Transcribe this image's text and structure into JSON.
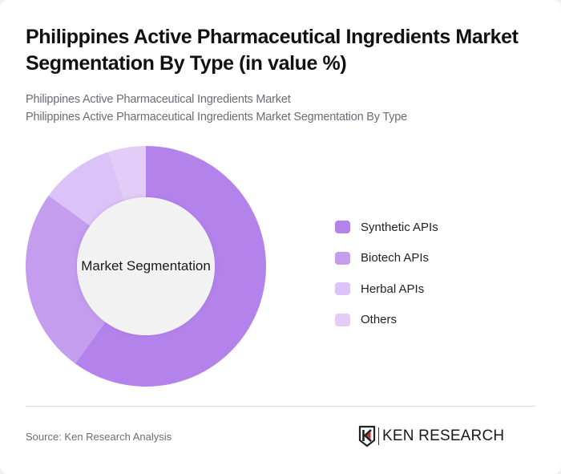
{
  "title": "Philippines Active Pharmaceutical Ingredients Market Segmentation By Type (in value %)",
  "subtitle": {
    "line1": "Philippines Active Pharmaceutical Ingredients Market",
    "line2": "Philippines Active Pharmaceutical Ingredients Market Segmentation By Type"
  },
  "center_label": "Market Segmentation",
  "legend": [
    {
      "label": "Synthetic APIs",
      "color": "#B482EB"
    },
    {
      "label": "Biotech APIs",
      "color": "#C49DEE"
    },
    {
      "label": "Herbal APIs",
      "color": "#DCC3F7"
    },
    {
      "label": "Others",
      "color": "#E3CDF8"
    }
  ],
  "footer": {
    "source": "Source: Ken Research Analysis",
    "logo_text": "KEN RESEARCH",
    "logo_icon": "ken-research-k-shield-icon"
  },
  "chart_data": {
    "type": "pie",
    "variant": "donut",
    "title": "Philippines Active Pharmaceutical Ingredients Market Segmentation By Type (in value %)",
    "center_text": "Market Segmentation",
    "categories": [
      "Synthetic APIs",
      "Biotech APIs",
      "Herbal APIs",
      "Others"
    ],
    "values": [
      60,
      25,
      10,
      5
    ],
    "colors": [
      "#B482EB",
      "#C49DEE",
      "#DCC3F7",
      "#E3CDF8"
    ],
    "unit": "%",
    "start_angle": "12 o'clock, clockwise",
    "legend_position": "right"
  }
}
